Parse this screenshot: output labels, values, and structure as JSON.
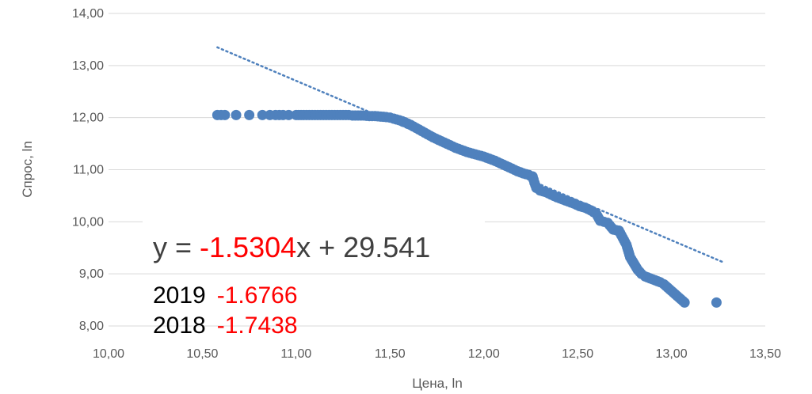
{
  "chart_data": {
    "type": "scatter",
    "xlabel": "Цена, ln",
    "ylabel": "Спрос, ln",
    "xlim": [
      10,
      13.5
    ],
    "ylim": [
      8,
      14
    ],
    "x_ticks": [
      "10,00",
      "10,50",
      "11,00",
      "11,50",
      "12,00",
      "12,50",
      "13,00",
      "13,50"
    ],
    "y_ticks": [
      "8,00",
      "9,00",
      "10,00",
      "11,00",
      "12,00",
      "13,00",
      "14,00"
    ],
    "grid": "horizontal",
    "marker_color": "#4f81bd",
    "trendline": {
      "type": "linear",
      "slope": -1.5304,
      "intercept": 29.541,
      "x_range": [
        10.58,
        13.27
      ],
      "color": "#4f81bd",
      "style": "dotted"
    },
    "equation": {
      "prefix": "y = ",
      "coef": "-1.5304",
      "suffix": "x + 29.541"
    },
    "annotations": [
      {
        "year": "2019",
        "value": "-1.6766"
      },
      {
        "year": "2018",
        "value": "-1.7438"
      }
    ],
    "points": [
      [
        10.58,
        12.05
      ],
      [
        10.6,
        12.05
      ],
      [
        10.62,
        12.05
      ],
      [
        10.68,
        12.05
      ],
      [
        10.75,
        12.05
      ],
      [
        10.82,
        12.05
      ],
      [
        10.86,
        12.05
      ],
      [
        10.89,
        12.05
      ],
      [
        10.91,
        12.05
      ],
      [
        10.93,
        12.05
      ],
      [
        10.96,
        12.05
      ],
      [
        11.0,
        12.05
      ],
      [
        11.04,
        12.05
      ],
      [
        11.07,
        12.05
      ],
      [
        11.1,
        12.05
      ],
      [
        11.13,
        12.05
      ],
      [
        11.16,
        12.05
      ],
      [
        11.19,
        12.05
      ],
      [
        11.22,
        12.05
      ],
      [
        11.25,
        12.05
      ],
      [
        11.28,
        12.05
      ],
      [
        11.3,
        12.04
      ],
      [
        11.33,
        12.04
      ],
      [
        11.36,
        12.04
      ],
      [
        11.39,
        12.03
      ],
      [
        11.42,
        12.03
      ],
      [
        11.45,
        12.02
      ],
      [
        11.48,
        12.01
      ],
      [
        11.5,
        12.0
      ],
      [
        11.52,
        11.98
      ],
      [
        11.55,
        11.95
      ],
      [
        11.58,
        11.91
      ],
      [
        11.61,
        11.86
      ],
      [
        11.64,
        11.8
      ],
      [
        11.67,
        11.74
      ],
      [
        11.7,
        11.68
      ],
      [
        11.73,
        11.62
      ],
      [
        11.76,
        11.57
      ],
      [
        11.79,
        11.52
      ],
      [
        11.82,
        11.47
      ],
      [
        11.85,
        11.42
      ],
      [
        11.88,
        11.38
      ],
      [
        11.91,
        11.34
      ],
      [
        11.94,
        11.31
      ],
      [
        11.97,
        11.28
      ],
      [
        12.0,
        11.25
      ],
      [
        12.03,
        11.21
      ],
      [
        12.06,
        11.17
      ],
      [
        12.09,
        11.12
      ],
      [
        12.12,
        11.07
      ],
      [
        12.15,
        11.02
      ],
      [
        12.18,
        10.97
      ],
      [
        12.21,
        10.93
      ],
      [
        12.24,
        10.9
      ],
      [
        12.26,
        10.87
      ],
      [
        12.27,
        10.75
      ],
      [
        12.28,
        10.65
      ],
      [
        12.3,
        10.6
      ],
      [
        12.33,
        10.57
      ],
      [
        12.36,
        10.52
      ],
      [
        12.39,
        10.47
      ],
      [
        12.42,
        10.43
      ],
      [
        12.45,
        10.39
      ],
      [
        12.48,
        10.35
      ],
      [
        12.51,
        10.3
      ],
      [
        12.54,
        10.27
      ],
      [
        12.57,
        10.22
      ],
      [
        12.6,
        10.15
      ],
      [
        12.62,
        10.02
      ],
      [
        12.64,
        10.0
      ],
      [
        12.66,
        9.98
      ],
      [
        12.69,
        9.85
      ],
      [
        12.72,
        9.83
      ],
      [
        12.76,
        9.56
      ],
      [
        12.78,
        9.32
      ],
      [
        12.8,
        9.2
      ],
      [
        12.82,
        9.08
      ],
      [
        12.84,
        9.0
      ],
      [
        12.86,
        8.95
      ],
      [
        12.94,
        8.84
      ],
      [
        12.96,
        8.8
      ],
      [
        13.07,
        8.45
      ],
      [
        13.24,
        8.45
      ]
    ]
  }
}
